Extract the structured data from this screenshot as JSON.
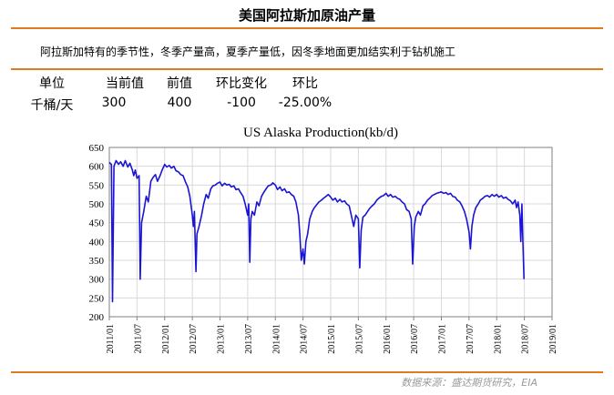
{
  "header": {
    "title": "美国阿拉斯加原油产量"
  },
  "note": "阿拉斯加特有的季节性，冬季产量高，夏季产量低，因冬季地面更加结实利于钻机施工",
  "stats": {
    "headers": [
      "单位",
      "当前值",
      "前值",
      "环比变化",
      "环比"
    ],
    "values": [
      "千桶/天",
      "300",
      "400",
      "-100",
      "-25.00%"
    ]
  },
  "source": "数据来源：盛达期货研究，EIA",
  "colors": {
    "accent": "#e07a20",
    "line": "#1a14d4",
    "grid": "#d9d9d9"
  },
  "chart_data": {
    "type": "line",
    "title": "US Alaska Production(kb/d)",
    "xlabel": "",
    "ylabel": "",
    "ylim": [
      200,
      650
    ],
    "yticks": [
      200,
      250,
      300,
      350,
      400,
      450,
      500,
      550,
      600,
      650
    ],
    "xlim": [
      "2011-01",
      "2019-01"
    ],
    "xticks": [
      "2011/01",
      "2011/07",
      "2012/01",
      "2012/07",
      "2013/01",
      "2013/07",
      "2014/01",
      "2014/07",
      "2015/01",
      "2015/07",
      "2016/01",
      "2016/07",
      "2017/01",
      "2017/07",
      "2018/01",
      "2018/07",
      "2019/01"
    ],
    "grid": true,
    "legend": "none",
    "series": [
      {
        "name": "",
        "points": [
          [
            "2011-01-01",
            610
          ],
          [
            "2011-01-15",
            605
          ],
          [
            "2011-01-22",
            240
          ],
          [
            "2011-02-01",
            600
          ],
          [
            "2011-02-15",
            615
          ],
          [
            "2011-03-01",
            605
          ],
          [
            "2011-03-15",
            612
          ],
          [
            "2011-04-01",
            600
          ],
          [
            "2011-04-15",
            615
          ],
          [
            "2011-05-01",
            598
          ],
          [
            "2011-05-15",
            608
          ],
          [
            "2011-06-01",
            590
          ],
          [
            "2011-06-10",
            575
          ],
          [
            "2011-06-20",
            590
          ],
          [
            "2011-07-01",
            568
          ],
          [
            "2011-07-15",
            575
          ],
          [
            "2011-07-22",
            300
          ],
          [
            "2011-08-01",
            450
          ],
          [
            "2011-08-15",
            480
          ],
          [
            "2011-09-01",
            520
          ],
          [
            "2011-09-15",
            505
          ],
          [
            "2011-10-01",
            560
          ],
          [
            "2011-10-15",
            570
          ],
          [
            "2011-11-01",
            578
          ],
          [
            "2011-11-15",
            560
          ],
          [
            "2011-12-01",
            575
          ],
          [
            "2011-12-15",
            590
          ],
          [
            "2012-01-01",
            605
          ],
          [
            "2012-01-15",
            598
          ],
          [
            "2012-02-01",
            602
          ],
          [
            "2012-02-15",
            595
          ],
          [
            "2012-03-01",
            600
          ],
          [
            "2012-03-15",
            588
          ],
          [
            "2012-04-01",
            585
          ],
          [
            "2012-04-15",
            578
          ],
          [
            "2012-05-01",
            575
          ],
          [
            "2012-05-15",
            560
          ],
          [
            "2012-06-01",
            545
          ],
          [
            "2012-06-15",
            520
          ],
          [
            "2012-07-01",
            470
          ],
          [
            "2012-07-08",
            440
          ],
          [
            "2012-07-15",
            480
          ],
          [
            "2012-07-25",
            320
          ],
          [
            "2012-08-01",
            420
          ],
          [
            "2012-08-15",
            440
          ],
          [
            "2012-09-01",
            470
          ],
          [
            "2012-09-15",
            500
          ],
          [
            "2012-10-01",
            525
          ],
          [
            "2012-10-15",
            515
          ],
          [
            "2012-11-01",
            540
          ],
          [
            "2012-11-15",
            548
          ],
          [
            "2012-12-01",
            550
          ],
          [
            "2012-12-15",
            555
          ],
          [
            "2013-01-01",
            558
          ],
          [
            "2013-01-15",
            548
          ],
          [
            "2013-02-01",
            555
          ],
          [
            "2013-02-15",
            550
          ],
          [
            "2013-03-01",
            552
          ],
          [
            "2013-03-15",
            545
          ],
          [
            "2013-04-01",
            548
          ],
          [
            "2013-04-15",
            538
          ],
          [
            "2013-05-01",
            540
          ],
          [
            "2013-05-15",
            530
          ],
          [
            "2013-06-01",
            520
          ],
          [
            "2013-06-15",
            500
          ],
          [
            "2013-07-01",
            470
          ],
          [
            "2013-07-08",
            500
          ],
          [
            "2013-07-15",
            345
          ],
          [
            "2013-07-22",
            460
          ],
          [
            "2013-08-01",
            480
          ],
          [
            "2013-08-15",
            470
          ],
          [
            "2013-09-01",
            505
          ],
          [
            "2013-09-15",
            495
          ],
          [
            "2013-10-01",
            520
          ],
          [
            "2013-10-15",
            530
          ],
          [
            "2013-11-01",
            540
          ],
          [
            "2013-11-15",
            548
          ],
          [
            "2013-12-01",
            550
          ],
          [
            "2013-12-15",
            556
          ],
          [
            "2014-01-01",
            550
          ],
          [
            "2014-01-15",
            538
          ],
          [
            "2014-02-01",
            545
          ],
          [
            "2014-02-15",
            535
          ],
          [
            "2014-03-01",
            540
          ],
          [
            "2014-03-15",
            530
          ],
          [
            "2014-04-01",
            532
          ],
          [
            "2014-04-15",
            525
          ],
          [
            "2014-05-01",
            520
          ],
          [
            "2014-05-15",
            505
          ],
          [
            "2014-06-01",
            470
          ],
          [
            "2014-06-10",
            420
          ],
          [
            "2014-06-20",
            350
          ],
          [
            "2014-07-01",
            380
          ],
          [
            "2014-07-10",
            340
          ],
          [
            "2014-07-20",
            400
          ],
          [
            "2014-08-01",
            420
          ],
          [
            "2014-08-15",
            460
          ],
          [
            "2014-09-01",
            480
          ],
          [
            "2014-09-15",
            490
          ],
          [
            "2014-10-01",
            498
          ],
          [
            "2014-10-15",
            505
          ],
          [
            "2014-11-01",
            510
          ],
          [
            "2014-11-15",
            515
          ],
          [
            "2014-12-01",
            520
          ],
          [
            "2014-12-15",
            525
          ],
          [
            "2015-01-01",
            518
          ],
          [
            "2015-01-15",
            510
          ],
          [
            "2015-02-01",
            515
          ],
          [
            "2015-02-15",
            505
          ],
          [
            "2015-03-01",
            512
          ],
          [
            "2015-03-15",
            505
          ],
          [
            "2015-04-01",
            508
          ],
          [
            "2015-04-15",
            500
          ],
          [
            "2015-05-01",
            495
          ],
          [
            "2015-05-15",
            470
          ],
          [
            "2015-06-01",
            440
          ],
          [
            "2015-06-15",
            470
          ],
          [
            "2015-07-01",
            460
          ],
          [
            "2015-07-10",
            330
          ],
          [
            "2015-07-20",
            430
          ],
          [
            "2015-08-01",
            465
          ],
          [
            "2015-08-15",
            470
          ],
          [
            "2015-09-01",
            480
          ],
          [
            "2015-09-15",
            488
          ],
          [
            "2015-10-01",
            495
          ],
          [
            "2015-10-15",
            500
          ],
          [
            "2015-11-01",
            510
          ],
          [
            "2015-11-15",
            515
          ],
          [
            "2015-12-01",
            520
          ],
          [
            "2015-12-15",
            522
          ],
          [
            "2016-01-01",
            528
          ],
          [
            "2016-01-15",
            520
          ],
          [
            "2016-02-01",
            525
          ],
          [
            "2016-02-15",
            518
          ],
          [
            "2016-03-01",
            520
          ],
          [
            "2016-03-15",
            515
          ],
          [
            "2016-04-01",
            512
          ],
          [
            "2016-04-15",
            505
          ],
          [
            "2016-05-01",
            500
          ],
          [
            "2016-05-15",
            485
          ],
          [
            "2016-06-01",
            480
          ],
          [
            "2016-06-15",
            460
          ],
          [
            "2016-06-25",
            340
          ],
          [
            "2016-07-05",
            440
          ],
          [
            "2016-07-15",
            465
          ],
          [
            "2016-08-01",
            480
          ],
          [
            "2016-08-15",
            470
          ],
          [
            "2016-09-01",
            495
          ],
          [
            "2016-09-15",
            500
          ],
          [
            "2016-10-01",
            510
          ],
          [
            "2016-10-15",
            515
          ],
          [
            "2016-11-01",
            522
          ],
          [
            "2016-11-15",
            525
          ],
          [
            "2016-12-01",
            528
          ],
          [
            "2016-12-15",
            530
          ],
          [
            "2017-01-01",
            532
          ],
          [
            "2017-01-15",
            528
          ],
          [
            "2017-02-01",
            530
          ],
          [
            "2017-02-15",
            525
          ],
          [
            "2017-03-01",
            528
          ],
          [
            "2017-03-15",
            520
          ],
          [
            "2017-04-01",
            518
          ],
          [
            "2017-04-15",
            510
          ],
          [
            "2017-05-01",
            505
          ],
          [
            "2017-05-15",
            495
          ],
          [
            "2017-06-01",
            480
          ],
          [
            "2017-06-15",
            460
          ],
          [
            "2017-07-01",
            425
          ],
          [
            "2017-07-10",
            380
          ],
          [
            "2017-07-20",
            440
          ],
          [
            "2017-08-01",
            470
          ],
          [
            "2017-08-15",
            490
          ],
          [
            "2017-09-01",
            500
          ],
          [
            "2017-09-15",
            510
          ],
          [
            "2017-10-01",
            515
          ],
          [
            "2017-10-15",
            520
          ],
          [
            "2017-11-01",
            522
          ],
          [
            "2017-11-15",
            518
          ],
          [
            "2017-12-01",
            525
          ],
          [
            "2017-12-15",
            520
          ],
          [
            "2018-01-01",
            525
          ],
          [
            "2018-01-15",
            518
          ],
          [
            "2018-02-01",
            522
          ],
          [
            "2018-02-15",
            515
          ],
          [
            "2018-03-01",
            518
          ],
          [
            "2018-03-15",
            512
          ],
          [
            "2018-04-01",
            508
          ],
          [
            "2018-04-15",
            500
          ],
          [
            "2018-05-01",
            510
          ],
          [
            "2018-05-10",
            490
          ],
          [
            "2018-05-20",
            505
          ],
          [
            "2018-06-01",
            470
          ],
          [
            "2018-06-08",
            400
          ],
          [
            "2018-06-15",
            500
          ],
          [
            "2018-06-22",
            400
          ],
          [
            "2018-06-29",
            300
          ]
        ]
      }
    ]
  }
}
